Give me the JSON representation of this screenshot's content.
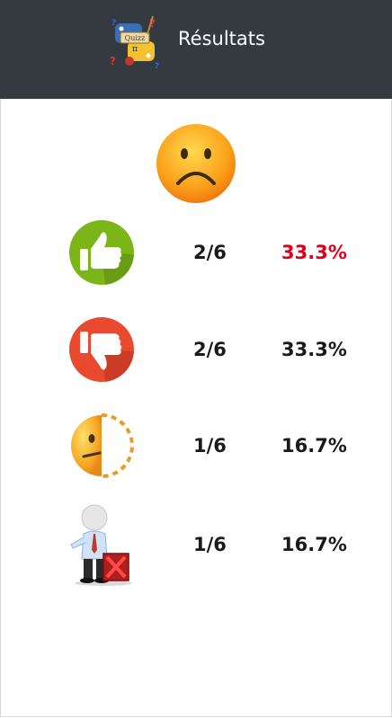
{
  "header": {
    "title": "Résultats",
    "logo_text": "Quizz"
  },
  "summary_icon": "sad-face-icon",
  "results": [
    {
      "icon": "thumbs-up-icon",
      "count": "2/6",
      "percent": "33.3%",
      "percent_color": "#e0001a"
    },
    {
      "icon": "thumbs-down-icon",
      "count": "2/6",
      "percent": "33.3%",
      "percent_color": "#1a1a1a"
    },
    {
      "icon": "half-face-icon",
      "count": "1/6",
      "percent": "16.7%",
      "percent_color": "#1a1a1a"
    },
    {
      "icon": "figure-with-x-icon",
      "count": "1/6",
      "percent": "16.7%",
      "percent_color": "#1a1a1a"
    }
  ],
  "colors": {
    "header_bg": "#343a40",
    "thumbs_up": "#7cb518",
    "thumbs_down": "#e8492f",
    "emoji_yellow": "#f9a825"
  }
}
